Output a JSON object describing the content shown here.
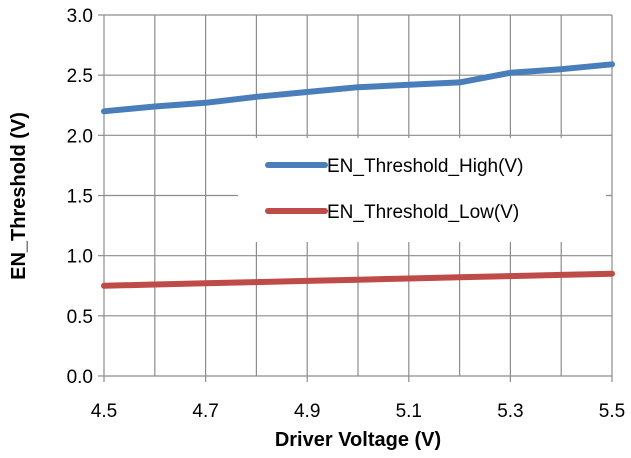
{
  "chart_data": {
    "type": "line",
    "xlabel": "Driver Voltage (V)",
    "ylabel": "EN_Threshold (V)",
    "xlim": [
      4.5,
      5.5
    ],
    "ylim": [
      0.0,
      3.0
    ],
    "x_ticks": [
      "4.5",
      "4.7",
      "4.9",
      "5.1",
      "5.3",
      "5.5"
    ],
    "x_grid": [
      4.5,
      4.6,
      4.7,
      4.8,
      4.9,
      5.0,
      5.1,
      5.2,
      5.3,
      5.4,
      5.5
    ],
    "y_ticks": [
      "0.0",
      "0.5",
      "1.0",
      "1.5",
      "2.0",
      "2.5",
      "3.0"
    ],
    "grid": true,
    "legend_position": "center-right",
    "series": [
      {
        "name": "EN_Threshold_High(V)",
        "color": "#4a7ebb",
        "x": [
          4.5,
          4.6,
          4.7,
          4.8,
          4.9,
          5.0,
          5.1,
          5.2,
          5.3,
          5.4,
          5.5
        ],
        "y": [
          2.2,
          2.24,
          2.27,
          2.32,
          2.36,
          2.4,
          2.42,
          2.44,
          2.52,
          2.55,
          2.59
        ]
      },
      {
        "name": "EN_Threshold_Low(V)",
        "color": "#be4b48",
        "x": [
          4.5,
          4.6,
          4.7,
          4.8,
          4.9,
          5.0,
          5.1,
          5.2,
          5.3,
          5.4,
          5.5
        ],
        "y": [
          0.75,
          0.76,
          0.77,
          0.78,
          0.79,
          0.8,
          0.81,
          0.82,
          0.83,
          0.84,
          0.85
        ]
      }
    ]
  }
}
